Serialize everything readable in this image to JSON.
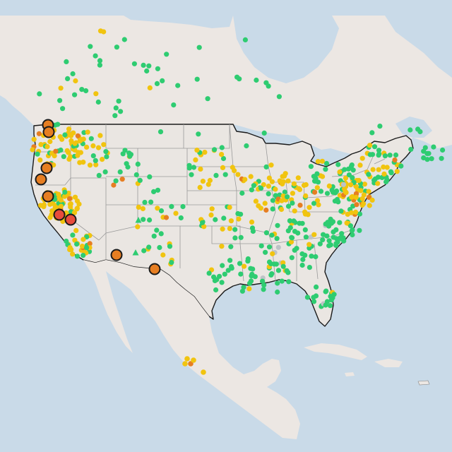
{
  "map": {
    "kind": "air-quality-sensor-map",
    "region": "United States",
    "colors": {
      "water": "#c9dae8",
      "land": "#ece7e3",
      "land_us": "#eae6e2",
      "border_country": "#1a1a1a",
      "border_state": "#9a9a9a",
      "good": "#2ecc71",
      "moderate": "#f1c40f",
      "usg": "#e67e22",
      "unhealthy": "#e74c3c",
      "no_data": "#bdc3c7",
      "marker_outline": "#1a1a1a"
    },
    "marker_icons": [
      "circle-marker",
      "triangle-marker",
      "highlighted-circle-marker"
    ]
  }
}
